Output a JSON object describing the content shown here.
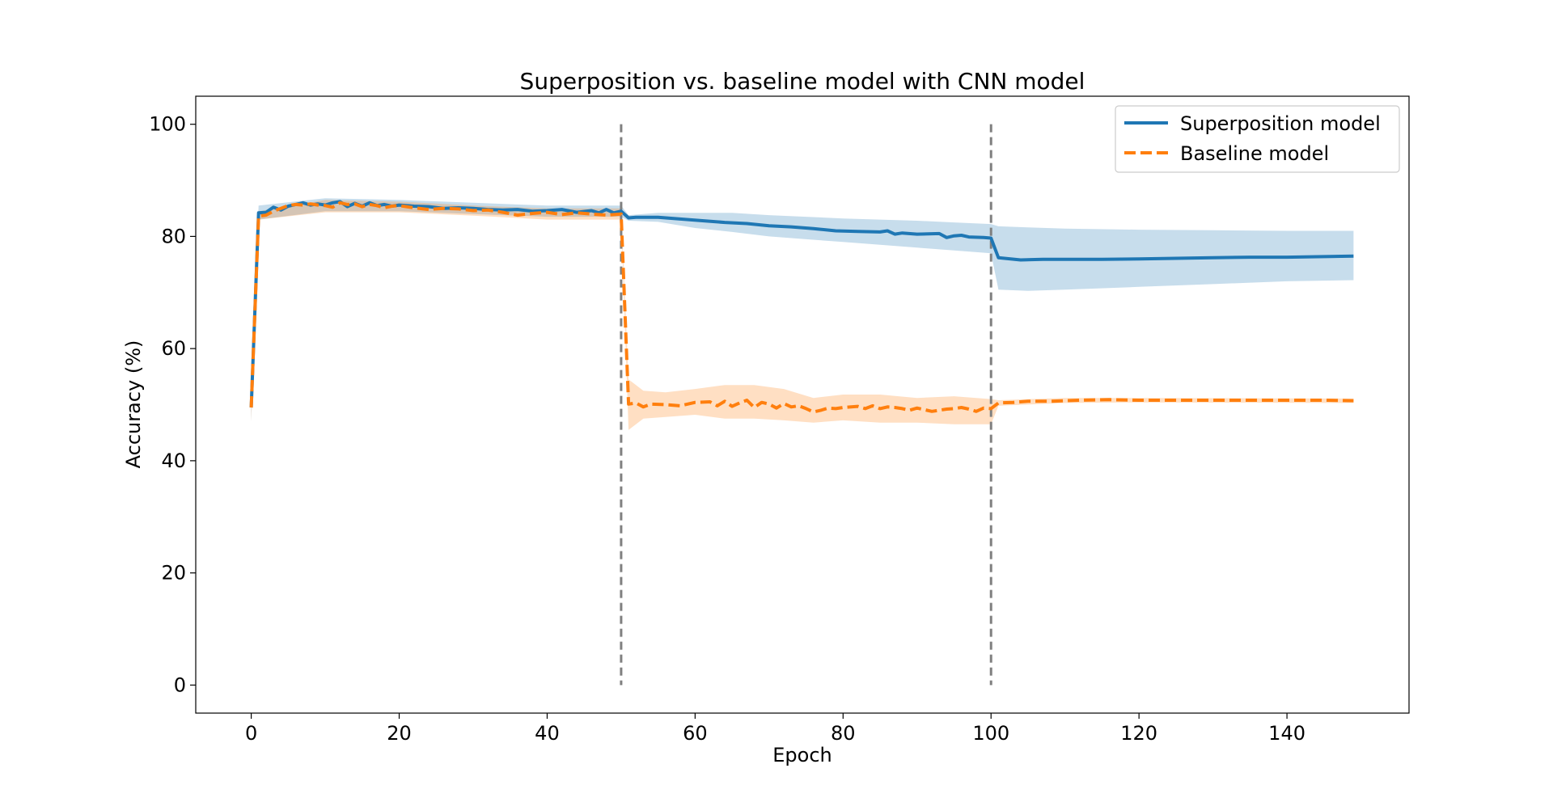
{
  "chart_data": {
    "type": "line",
    "title": "Superposition vs. baseline model with CNN model",
    "xlabel": "Epoch",
    "ylabel": "Accuracy (%)",
    "xlim": [
      -7.5,
      156.5
    ],
    "ylim": [
      -5,
      105
    ],
    "xticks": [
      0,
      20,
      40,
      60,
      80,
      100,
      120,
      140
    ],
    "yticks": [
      0,
      20,
      40,
      60,
      80,
      100
    ],
    "grid": false,
    "legend": "top-right",
    "vlines": [
      50,
      100
    ],
    "series": [
      {
        "name": "Superposition model",
        "color": "#1f77b4",
        "style": "solid",
        "points": [
          [
            0,
            49.5
          ],
          [
            1,
            84.2
          ],
          [
            2,
            84.3
          ],
          [
            3,
            85.2
          ],
          [
            4,
            84.7
          ],
          [
            5,
            85.4
          ],
          [
            6,
            85.7
          ],
          [
            7,
            86.0
          ],
          [
            8,
            85.6
          ],
          [
            9,
            85.8
          ],
          [
            10,
            85.6
          ],
          [
            11,
            86.0
          ],
          [
            12,
            86.2
          ],
          [
            13,
            85.3
          ],
          [
            14,
            85.9
          ],
          [
            15,
            85.4
          ],
          [
            16,
            86.0
          ],
          [
            17,
            85.5
          ],
          [
            18,
            85.7
          ],
          [
            19,
            85.4
          ],
          [
            20,
            85.6
          ],
          [
            22,
            85.4
          ],
          [
            24,
            85.3
          ],
          [
            26,
            85.0
          ],
          [
            28,
            85.1
          ],
          [
            30,
            85.0
          ],
          [
            32,
            84.8
          ],
          [
            34,
            84.7
          ],
          [
            36,
            84.8
          ],
          [
            38,
            84.5
          ],
          [
            40,
            84.6
          ],
          [
            42,
            84.8
          ],
          [
            44,
            84.3
          ],
          [
            46,
            84.6
          ],
          [
            47,
            84.2
          ],
          [
            48,
            84.8
          ],
          [
            49,
            84.2
          ],
          [
            50,
            84.5
          ],
          [
            51,
            83.3
          ],
          [
            52,
            83.4
          ],
          [
            55,
            83.4
          ],
          [
            58,
            83.1
          ],
          [
            61,
            82.8
          ],
          [
            64,
            82.5
          ],
          [
            67,
            82.3
          ],
          [
            70,
            81.9
          ],
          [
            73,
            81.7
          ],
          [
            76,
            81.4
          ],
          [
            79,
            81.0
          ],
          [
            82,
            80.9
          ],
          [
            85,
            80.8
          ],
          [
            86,
            81.0
          ],
          [
            87,
            80.4
          ],
          [
            88,
            80.6
          ],
          [
            90,
            80.4
          ],
          [
            93,
            80.5
          ],
          [
            94,
            79.8
          ],
          [
            95,
            80.1
          ],
          [
            96,
            80.2
          ],
          [
            97,
            79.9
          ],
          [
            99,
            79.8
          ],
          [
            100,
            79.7
          ],
          [
            101,
            76.2
          ],
          [
            104,
            75.8
          ],
          [
            107,
            75.9
          ],
          [
            110,
            75.9
          ],
          [
            115,
            75.9
          ],
          [
            120,
            76.0
          ],
          [
            125,
            76.1
          ],
          [
            130,
            76.2
          ],
          [
            135,
            76.3
          ],
          [
            140,
            76.3
          ],
          [
            145,
            76.4
          ],
          [
            149,
            76.5
          ]
        ],
        "band": [
          [
            0,
            47,
            52
          ],
          [
            1,
            83,
            85.5
          ],
          [
            10,
            84.5,
            86.8
          ],
          [
            20,
            84.5,
            86.5
          ],
          [
            30,
            84,
            86
          ],
          [
            40,
            83.5,
            85.5
          ],
          [
            50,
            83.5,
            85.5
          ],
          [
            51,
            82.8,
            83.8
          ],
          [
            55,
            82.6,
            84.2
          ],
          [
            60,
            81.5,
            84.2
          ],
          [
            65,
            80.8,
            84.2
          ],
          [
            70,
            80,
            83.8
          ],
          [
            75,
            79.5,
            83.5
          ],
          [
            80,
            79,
            83.2
          ],
          [
            85,
            78.5,
            83
          ],
          [
            90,
            78,
            82.8
          ],
          [
            95,
            77.5,
            82.5
          ],
          [
            100,
            77,
            82.2
          ],
          [
            101,
            70.5,
            81.8
          ],
          [
            105,
            70.3,
            81.6
          ],
          [
            110,
            70.5,
            81.4
          ],
          [
            120,
            71,
            81.2
          ],
          [
            130,
            71.5,
            81.1
          ],
          [
            140,
            72,
            81
          ],
          [
            149,
            72.2,
            81
          ]
        ]
      },
      {
        "name": "Baseline model",
        "color": "#ff7f0e",
        "style": "dashed",
        "points": [
          [
            0,
            49.5
          ],
          [
            1,
            83.6
          ],
          [
            2,
            83.8
          ],
          [
            3,
            84.5
          ],
          [
            4,
            85.0
          ],
          [
            5,
            85.5
          ],
          [
            6,
            85.7
          ],
          [
            7,
            85.6
          ],
          [
            8,
            85.8
          ],
          [
            9,
            85.6
          ],
          [
            10,
            85.5
          ],
          [
            11,
            85.2
          ],
          [
            12,
            86.0
          ],
          [
            13,
            85.7
          ],
          [
            14,
            85.8
          ],
          [
            15,
            85.3
          ],
          [
            16,
            85.7
          ],
          [
            17,
            85.5
          ],
          [
            18,
            85.1
          ],
          [
            19,
            85.4
          ],
          [
            20,
            85.5
          ],
          [
            22,
            85.1
          ],
          [
            24,
            84.8
          ],
          [
            26,
            85.0
          ],
          [
            28,
            84.9
          ],
          [
            30,
            84.6
          ],
          [
            32,
            84.7
          ],
          [
            34,
            84.3
          ],
          [
            36,
            83.8
          ],
          [
            38,
            84.1
          ],
          [
            40,
            84.3
          ],
          [
            42,
            83.9
          ],
          [
            44,
            84.2
          ],
          [
            46,
            84.0
          ],
          [
            48,
            83.8
          ],
          [
            50,
            84.0
          ],
          [
            51,
            50.1
          ],
          [
            52,
            50.3
          ],
          [
            53,
            49.6
          ],
          [
            54,
            50.1
          ],
          [
            56,
            50.0
          ],
          [
            58,
            49.8
          ],
          [
            60,
            50.4
          ],
          [
            62,
            50.5
          ],
          [
            63,
            49.8
          ],
          [
            64,
            50.6
          ],
          [
            65,
            49.7
          ],
          [
            66,
            50.3
          ],
          [
            67,
            50.8
          ],
          [
            68,
            49.5
          ],
          [
            69,
            50.4
          ],
          [
            70,
            50.1
          ],
          [
            71,
            49.4
          ],
          [
            72,
            50.2
          ],
          [
            73,
            49.6
          ],
          [
            74,
            49.8
          ],
          [
            75,
            49.3
          ],
          [
            76,
            48.7
          ],
          [
            77,
            49.0
          ],
          [
            78,
            49.4
          ],
          [
            79,
            49.3
          ],
          [
            80,
            49.5
          ],
          [
            82,
            49.7
          ],
          [
            83,
            49.3
          ],
          [
            84,
            49.8
          ],
          [
            85,
            49.3
          ],
          [
            86,
            49.6
          ],
          [
            87,
            49.5
          ],
          [
            88,
            49.3
          ],
          [
            89,
            49.0
          ],
          [
            90,
            49.4
          ],
          [
            92,
            48.8
          ],
          [
            94,
            49.2
          ],
          [
            95,
            49.3
          ],
          [
            96,
            49.5
          ],
          [
            97,
            49.2
          ],
          [
            98,
            48.8
          ],
          [
            99,
            49.4
          ],
          [
            100,
            49.3
          ],
          [
            101,
            50.3
          ],
          [
            103,
            50.4
          ],
          [
            105,
            50.6
          ],
          [
            108,
            50.6
          ],
          [
            112,
            50.8
          ],
          [
            116,
            50.9
          ],
          [
            120,
            50.8
          ],
          [
            125,
            50.8
          ],
          [
            130,
            50.8
          ],
          [
            135,
            50.8
          ],
          [
            140,
            50.8
          ],
          [
            145,
            50.8
          ],
          [
            149,
            50.7
          ]
        ],
        "band": [
          [
            0,
            47,
            52
          ],
          [
            1,
            83,
            84.5
          ],
          [
            10,
            84.3,
            86.5
          ],
          [
            20,
            84.3,
            86.2
          ],
          [
            30,
            83.7,
            85.5
          ],
          [
            40,
            83,
            85
          ],
          [
            50,
            83,
            85
          ],
          [
            51,
            45.5,
            54.5
          ],
          [
            53,
            47.5,
            52.5
          ],
          [
            56,
            47.8,
            52.2
          ],
          [
            60,
            48.2,
            52.8
          ],
          [
            64,
            47.5,
            53.5
          ],
          [
            68,
            47.5,
            53.5
          ],
          [
            72,
            47.2,
            52.8
          ],
          [
            76,
            46.8,
            51.2
          ],
          [
            80,
            47.2,
            51.8
          ],
          [
            85,
            46.8,
            51.8
          ],
          [
            90,
            46.8,
            51.2
          ],
          [
            95,
            46.5,
            51.5
          ],
          [
            100,
            46.5,
            51
          ],
          [
            101,
            49.8,
            50.8
          ],
          [
            110,
            50.3,
            51.2
          ],
          [
            120,
            50.4,
            51.2
          ],
          [
            149,
            50.3,
            51.1
          ]
        ]
      }
    ]
  }
}
